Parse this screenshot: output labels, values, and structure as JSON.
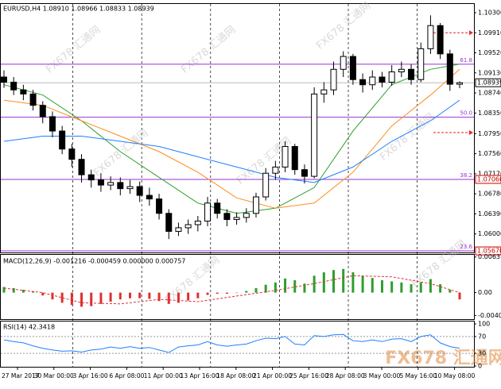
{
  "chart_data": {
    "type": "candlestick",
    "header": "EURUSD,H4 1.08910 1.08966 1.08833 1.08939",
    "watermark": "FX678 汇通网",
    "x_labels": [
      "27 Mar 2017",
      "30 Mar 00:00",
      "3 Apr 16:00",
      "6 Apr 08:00",
      "11 Apr 00:00",
      "13 Apr 16:00",
      "18 Apr 08:00",
      "21 Apr 00:00",
      "25 Apr 16:00",
      "28 Apr 08:00",
      "3 May 00:00",
      "5 May 16:00",
      "10 May 08:00"
    ],
    "open": [
      1.0905,
      1.0895,
      1.088,
      1.0872,
      1.085,
      1.0828,
      1.08,
      1.0765,
      1.0745,
      1.0715,
      1.0705,
      1.0695,
      1.07,
      1.0688,
      1.0692,
      1.0675,
      1.0668,
      1.064,
      1.0605,
      1.0612,
      1.0618,
      1.0625,
      1.066,
      1.064,
      1.0628,
      1.0632,
      1.064,
      1.0672,
      1.0718,
      1.073,
      1.077,
      1.0725,
      1.0712,
      1.0872,
      1.088,
      1.092,
      1.0945,
      1.09,
      1.089,
      1.0905,
      1.0895,
      1.0915,
      1.092,
      1.09,
      1.096,
      1.1005,
      1.095,
      1.0891
    ],
    "high": [
      1.0918,
      1.0905,
      1.089,
      1.088,
      1.0858,
      1.0838,
      1.081,
      1.0775,
      1.0755,
      1.0725,
      1.0718,
      1.0712,
      1.071,
      1.0705,
      1.0702,
      1.069,
      1.0678,
      1.0648,
      1.0622,
      1.0628,
      1.0635,
      1.0672,
      1.0668,
      1.0648,
      1.0642,
      1.065,
      1.068,
      1.0728,
      1.0742,
      1.078,
      1.0775,
      1.0735,
      1.0885,
      1.0895,
      1.0935,
      1.0955,
      1.095,
      1.0912,
      1.0918,
      1.0915,
      1.0928,
      1.0935,
      1.093,
      1.0972,
      1.1025,
      1.101,
      1.0958,
      1.08966
    ],
    "low": [
      1.0884,
      1.087,
      1.086,
      1.084,
      1.0815,
      1.0788,
      1.0755,
      1.073,
      1.07,
      1.069,
      1.0682,
      1.0685,
      1.0675,
      1.0678,
      1.0662,
      1.0655,
      1.0628,
      1.059,
      1.0596,
      1.06,
      1.0605,
      1.0615,
      1.063,
      1.0615,
      1.0618,
      1.0622,
      1.0632,
      1.0665,
      1.0705,
      1.072,
      1.0715,
      1.0698,
      1.0708,
      1.0855,
      1.087,
      1.0905,
      1.089,
      1.0875,
      1.088,
      1.0885,
      1.0888,
      1.0905,
      1.089,
      1.0895,
      1.095,
      1.094,
      1.0878,
      1.08833
    ],
    "close": [
      1.0895,
      1.088,
      1.0872,
      1.085,
      1.0828,
      1.08,
      1.0765,
      1.0745,
      1.0715,
      1.0705,
      1.0695,
      1.07,
      1.0688,
      1.0692,
      1.0675,
      1.0668,
      1.064,
      1.0605,
      1.0612,
      1.0618,
      1.0625,
      1.066,
      1.064,
      1.0628,
      1.0632,
      1.064,
      1.0672,
      1.0718,
      1.073,
      1.077,
      1.0725,
      1.0712,
      1.0872,
      1.088,
      1.092,
      1.0945,
      1.09,
      1.089,
      1.0905,
      1.0895,
      1.0915,
      1.092,
      1.09,
      1.096,
      1.1005,
      1.095,
      1.0891,
      1.08939
    ],
    "ma_x": [
      0,
      4,
      8,
      12,
      16,
      20,
      24,
      28,
      32,
      36,
      40,
      44,
      47
    ],
    "series": [
      {
        "color": "#2e9e2e",
        "values": [
          1.089,
          1.087,
          1.082,
          1.076,
          1.071,
          1.066,
          1.064,
          1.065,
          1.069,
          1.08,
          1.089,
          1.092,
          1.093
        ]
      },
      {
        "color": "#ff8c1a",
        "values": [
          1.086,
          1.085,
          1.082,
          1.079,
          1.076,
          1.072,
          1.067,
          1.065,
          1.066,
          1.072,
          1.081,
          1.087,
          1.092
        ]
      },
      {
        "color": "#1e7fff",
        "values": [
          1.078,
          1.079,
          1.079,
          1.078,
          1.077,
          1.075,
          1.073,
          1.071,
          1.07,
          1.073,
          1.078,
          1.082,
          1.086
        ]
      }
    ],
    "ylim": [
      1.0564,
      1.1047
    ],
    "yticks": [
      {
        "value": 1.103,
        "label": "1.10300"
      },
      {
        "value": 1.0991,
        "label": "1.09910"
      },
      {
        "value": 1.0952,
        "label": "1.09520"
      },
      {
        "value": 1.0913,
        "label": "1.09130"
      },
      {
        "value": 1.0874,
        "label": "1.08740"
      },
      {
        "value": 1.0835,
        "label": "1.08350"
      },
      {
        "value": 1.0795,
        "label": "1.07950"
      },
      {
        "value": 1.0756,
        "label": "1.07560"
      },
      {
        "value": 1.0717,
        "label": "1.07170"
      },
      {
        "value": 1.0678,
        "label": "1.06780"
      },
      {
        "value": 1.0639,
        "label": "1.06390"
      },
      {
        "value": 1.06,
        "label": "1.06000"
      }
    ],
    "current_price": {
      "value": 1.08939,
      "label": "1.08939"
    },
    "levels": [
      {
        "value": 1.093,
        "label": "61.8"
      },
      {
        "value": 1.0827,
        "label": "50.0"
      },
      {
        "value": 1.0706,
        "label": "38.2",
        "price_label": "1.07060"
      },
      {
        "value": 1.0567,
        "label": "23.6",
        "price_label": "1.05670"
      }
    ],
    "alerts": [
      1.0991,
      1.0797
    ],
    "macd": {
      "label": "MACD(12,26,9) -0.001216 -0.000459 0.000000 0.000757",
      "histogram": [
        0.001,
        0.0008,
        0.0005,
        0.0002,
        -0.0005,
        -0.0012,
        -0.0018,
        -0.0022,
        -0.0025,
        -0.0024,
        -0.002,
        -0.0016,
        -0.0012,
        -0.001,
        -0.001,
        -0.0011,
        -0.0015,
        -0.002,
        -0.0018,
        -0.0014,
        -0.001,
        -0.0004,
        -0.0002,
        -0.0002,
        0.0,
        0.0003,
        0.0008,
        0.0014,
        0.0018,
        0.0025,
        0.0022,
        0.0016,
        0.003,
        0.0036,
        0.004,
        0.0042,
        0.0036,
        0.003,
        0.0026,
        0.0022,
        0.002,
        0.0018,
        0.0015,
        0.0018,
        0.0024,
        0.0015,
        0.0005,
        -0.0012
      ],
      "signal": [
        0.0008,
        0.0,
        -0.0018,
        -0.002,
        -0.0012,
        -0.0016,
        -0.0006,
        0.0004,
        0.0016,
        0.003,
        0.0028,
        0.0016,
        0.0
      ],
      "ylim": [
        -0.0047,
        0.0067
      ],
      "yticks": [
        {
          "value": 0.006319,
          "label": "0.006319"
        },
        {
          "value": 0,
          "label": "0.00"
        },
        {
          "value": -0.004046,
          "label": "-0.004046"
        }
      ]
    },
    "rsi": {
      "label": "RSI(14) 42.3418",
      "values": [
        62,
        58,
        55,
        48,
        42,
        38,
        35,
        36,
        33,
        38,
        40,
        45,
        42,
        46,
        42,
        44,
        38,
        32,
        45,
        48,
        50,
        58,
        50,
        47,
        50,
        52,
        60,
        66,
        65,
        70,
        52,
        50,
        72,
        70,
        74,
        75,
        60,
        58,
        62,
        58,
        64,
        65,
        58,
        70,
        74,
        55,
        46,
        42.3418
      ],
      "ylim": [
        0,
        100
      ],
      "yticks": [
        100,
        70,
        30,
        0
      ]
    }
  }
}
